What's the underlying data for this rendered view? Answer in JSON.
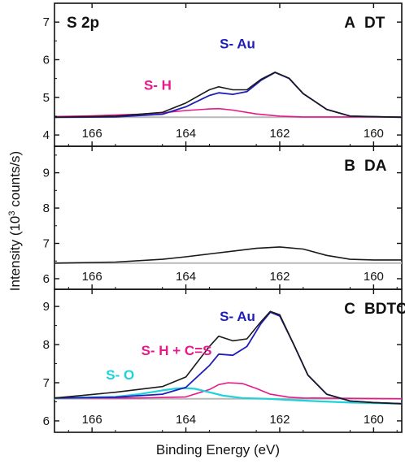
{
  "figure": {
    "xlabel": "Binding Energy (eV)",
    "ylabel_main": "Intensity (10",
    "ylabel_sup": "3",
    "ylabel_tail": " counts/s)"
  },
  "colors": {
    "envelope": "#1a1a1a",
    "s_au": "#1f1fb8",
    "s_h": "#e6198c",
    "s_o": "#1ed2d8",
    "background": "#b9b9b9"
  },
  "chart_data": [
    {
      "type": "line",
      "panel_label": "A",
      "sample": "DT",
      "corner_text": "S 2p",
      "xlim": [
        166.8,
        159.4
      ],
      "ylim": [
        3.7,
        7.5
      ],
      "yticks": [
        4,
        5,
        6,
        7
      ],
      "xticks": [
        166,
        164,
        162,
        160
      ],
      "annotations": [
        {
          "text": "S- Au",
          "color": "#1f1fb8",
          "x": 162.9,
          "y": 6.3
        },
        {
          "text": "S- H",
          "color": "#e6198c",
          "x": 164.6,
          "y": 5.2
        }
      ],
      "series": [
        {
          "role": "baseline",
          "x": [
            166.8,
            159.4
          ],
          "y": [
            4.47,
            4.47
          ]
        },
        {
          "role": "s_h",
          "x": [
            166.8,
            166,
            165,
            164.5,
            164,
            163.5,
            163.3,
            163,
            162.5,
            162,
            161.5,
            159.4
          ],
          "y": [
            4.49,
            4.51,
            4.55,
            4.59,
            4.65,
            4.69,
            4.7,
            4.66,
            4.56,
            4.5,
            4.48,
            4.48
          ]
        },
        {
          "role": "s_au",
          "x": [
            166.8,
            165.5,
            164.5,
            164,
            163.5,
            163.3,
            163,
            162.7,
            162.4,
            162.1,
            161.8,
            161.5,
            161,
            160.5,
            159.4
          ],
          "y": [
            4.47,
            4.48,
            4.55,
            4.75,
            5.05,
            5.12,
            5.08,
            5.15,
            5.45,
            5.66,
            5.5,
            5.1,
            4.68,
            4.5,
            4.47
          ]
        },
        {
          "role": "envelope",
          "x": [
            166.8,
            165.5,
            164.5,
            164,
            163.5,
            163.3,
            163,
            162.7,
            162.4,
            162.1,
            161.8,
            161.5,
            161,
            160.5,
            159.4
          ],
          "y": [
            4.47,
            4.5,
            4.6,
            4.85,
            5.2,
            5.28,
            5.2,
            5.2,
            5.48,
            5.67,
            5.51,
            5.1,
            4.68,
            4.5,
            4.47
          ]
        }
      ]
    },
    {
      "type": "line",
      "panel_label": "B",
      "sample": "DA",
      "xlim": [
        166.8,
        159.4
      ],
      "ylim": [
        5.7,
        9.75
      ],
      "yticks": [
        6,
        7,
        8,
        9
      ],
      "xticks": [
        166,
        164,
        162,
        160
      ],
      "series": [
        {
          "role": "baseline",
          "x": [
            166.8,
            159.4
          ],
          "y": [
            6.44,
            6.44
          ]
        },
        {
          "role": "envelope",
          "x": [
            166.8,
            165.5,
            164.5,
            164,
            163.5,
            163,
            162.5,
            162,
            161.5,
            161,
            160.5,
            160,
            159.4
          ],
          "y": [
            6.44,
            6.47,
            6.55,
            6.62,
            6.7,
            6.78,
            6.86,
            6.9,
            6.84,
            6.66,
            6.55,
            6.53,
            6.53
          ]
        }
      ]
    },
    {
      "type": "line",
      "panel_label": "C",
      "sample": "BDTC",
      "xlim": [
        166.8,
        159.4
      ],
      "ylim": [
        5.7,
        9.45
      ],
      "yticks": [
        6,
        7,
        8,
        9
      ],
      "xticks": [
        166,
        164,
        162,
        160
      ],
      "annotations": [
        {
          "text": "S- Au",
          "color": "#1f1fb8",
          "x": 162.9,
          "y": 8.62
        },
        {
          "text": "S- H + C=S",
          "color": "#e6198c",
          "x": 164.2,
          "y": 7.72
        },
        {
          "text": "S- O",
          "color": "#1ed2d8",
          "x": 165.4,
          "y": 7.08
        }
      ],
      "series": [
        {
          "role": "baseline",
          "x": [
            166.8,
            159.4
          ],
          "y": [
            6.58,
            6.58
          ]
        },
        {
          "role": "s_h",
          "x": [
            166.8,
            165,
            164,
            163.5,
            163.3,
            163.1,
            162.8,
            162.5,
            162.2,
            161.8,
            161.5,
            159.4
          ],
          "y": [
            6.6,
            6.6,
            6.63,
            6.82,
            6.95,
            7.0,
            6.98,
            6.85,
            6.7,
            6.62,
            6.6,
            6.58
          ]
        },
        {
          "role": "s_o",
          "x": [
            166.8,
            165.5,
            165,
            164.5,
            164.2,
            164,
            163.8,
            163.5,
            163.2,
            162.8,
            162.3,
            161.5,
            160.5,
            159.4
          ],
          "y": [
            6.6,
            6.63,
            6.7,
            6.8,
            6.85,
            6.86,
            6.84,
            6.75,
            6.66,
            6.6,
            6.58,
            6.53,
            6.48,
            6.45
          ]
        },
        {
          "role": "s_au",
          "x": [
            166.8,
            165.5,
            164.5,
            164,
            163.5,
            163.3,
            163,
            162.7,
            162.4,
            162.2,
            162,
            161.7,
            161.4,
            161,
            160.5,
            160,
            159.4
          ],
          "y": [
            6.6,
            6.62,
            6.7,
            6.88,
            7.45,
            7.75,
            7.72,
            7.95,
            8.55,
            8.85,
            8.75,
            8.0,
            7.2,
            6.7,
            6.52,
            6.48,
            6.45
          ]
        },
        {
          "role": "envelope",
          "x": [
            166.8,
            165.5,
            164.5,
            164,
            163.5,
            163.3,
            163,
            162.7,
            162.4,
            162.2,
            162,
            161.7,
            161.4,
            161,
            160.5,
            160,
            159.4
          ],
          "y": [
            6.6,
            6.75,
            6.9,
            7.15,
            7.95,
            8.22,
            8.1,
            8.15,
            8.6,
            8.87,
            8.78,
            8.0,
            7.2,
            6.7,
            6.52,
            6.48,
            6.45
          ]
        }
      ]
    }
  ]
}
